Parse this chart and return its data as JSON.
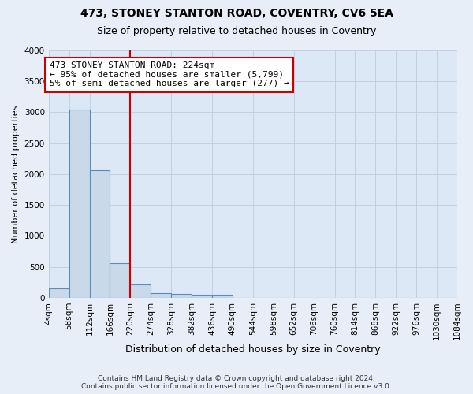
{
  "title1": "473, STONEY STANTON ROAD, COVENTRY, CV6 5EA",
  "title2": "Size of property relative to detached houses in Coventry",
  "xlabel": "Distribution of detached houses by size in Coventry",
  "ylabel": "Number of detached properties",
  "bin_edges": [
    4,
    58,
    112,
    166,
    220,
    274,
    328,
    382,
    436,
    490,
    544,
    598,
    652,
    706,
    760,
    814,
    868,
    922,
    976,
    1030,
    1084
  ],
  "bar_heights": [
    150,
    3050,
    2060,
    560,
    220,
    80,
    60,
    50,
    50,
    0,
    0,
    0,
    0,
    0,
    0,
    0,
    0,
    0,
    0,
    0
  ],
  "bar_color": "#c9d9ea",
  "bar_edge_color": "#5b8db8",
  "bar_edge_width": 0.8,
  "red_line_x": 220,
  "ylim": [
    0,
    4000
  ],
  "yticks": [
    0,
    500,
    1000,
    1500,
    2000,
    2500,
    3000,
    3500,
    4000
  ],
  "figure_bg": "#e8eef8",
  "axes_bg": "#dce8f5",
  "grid_color": "#c0ccdc",
  "annotation_text": "473 STONEY STANTON ROAD: 224sqm\n← 95% of detached houses are smaller (5,799)\n5% of semi-detached houses are larger (277) →",
  "annotation_box_color": "#ffffff",
  "annotation_box_edge_color": "#cc0000",
  "footnote": "Contains HM Land Registry data © Crown copyright and database right 2024.\nContains public sector information licensed under the Open Government Licence v3.0.",
  "title1_fontsize": 10,
  "title2_fontsize": 9,
  "xlabel_fontsize": 9,
  "ylabel_fontsize": 8,
  "tick_fontsize": 7.5,
  "annotation_fontsize": 8,
  "footnote_fontsize": 6.5
}
